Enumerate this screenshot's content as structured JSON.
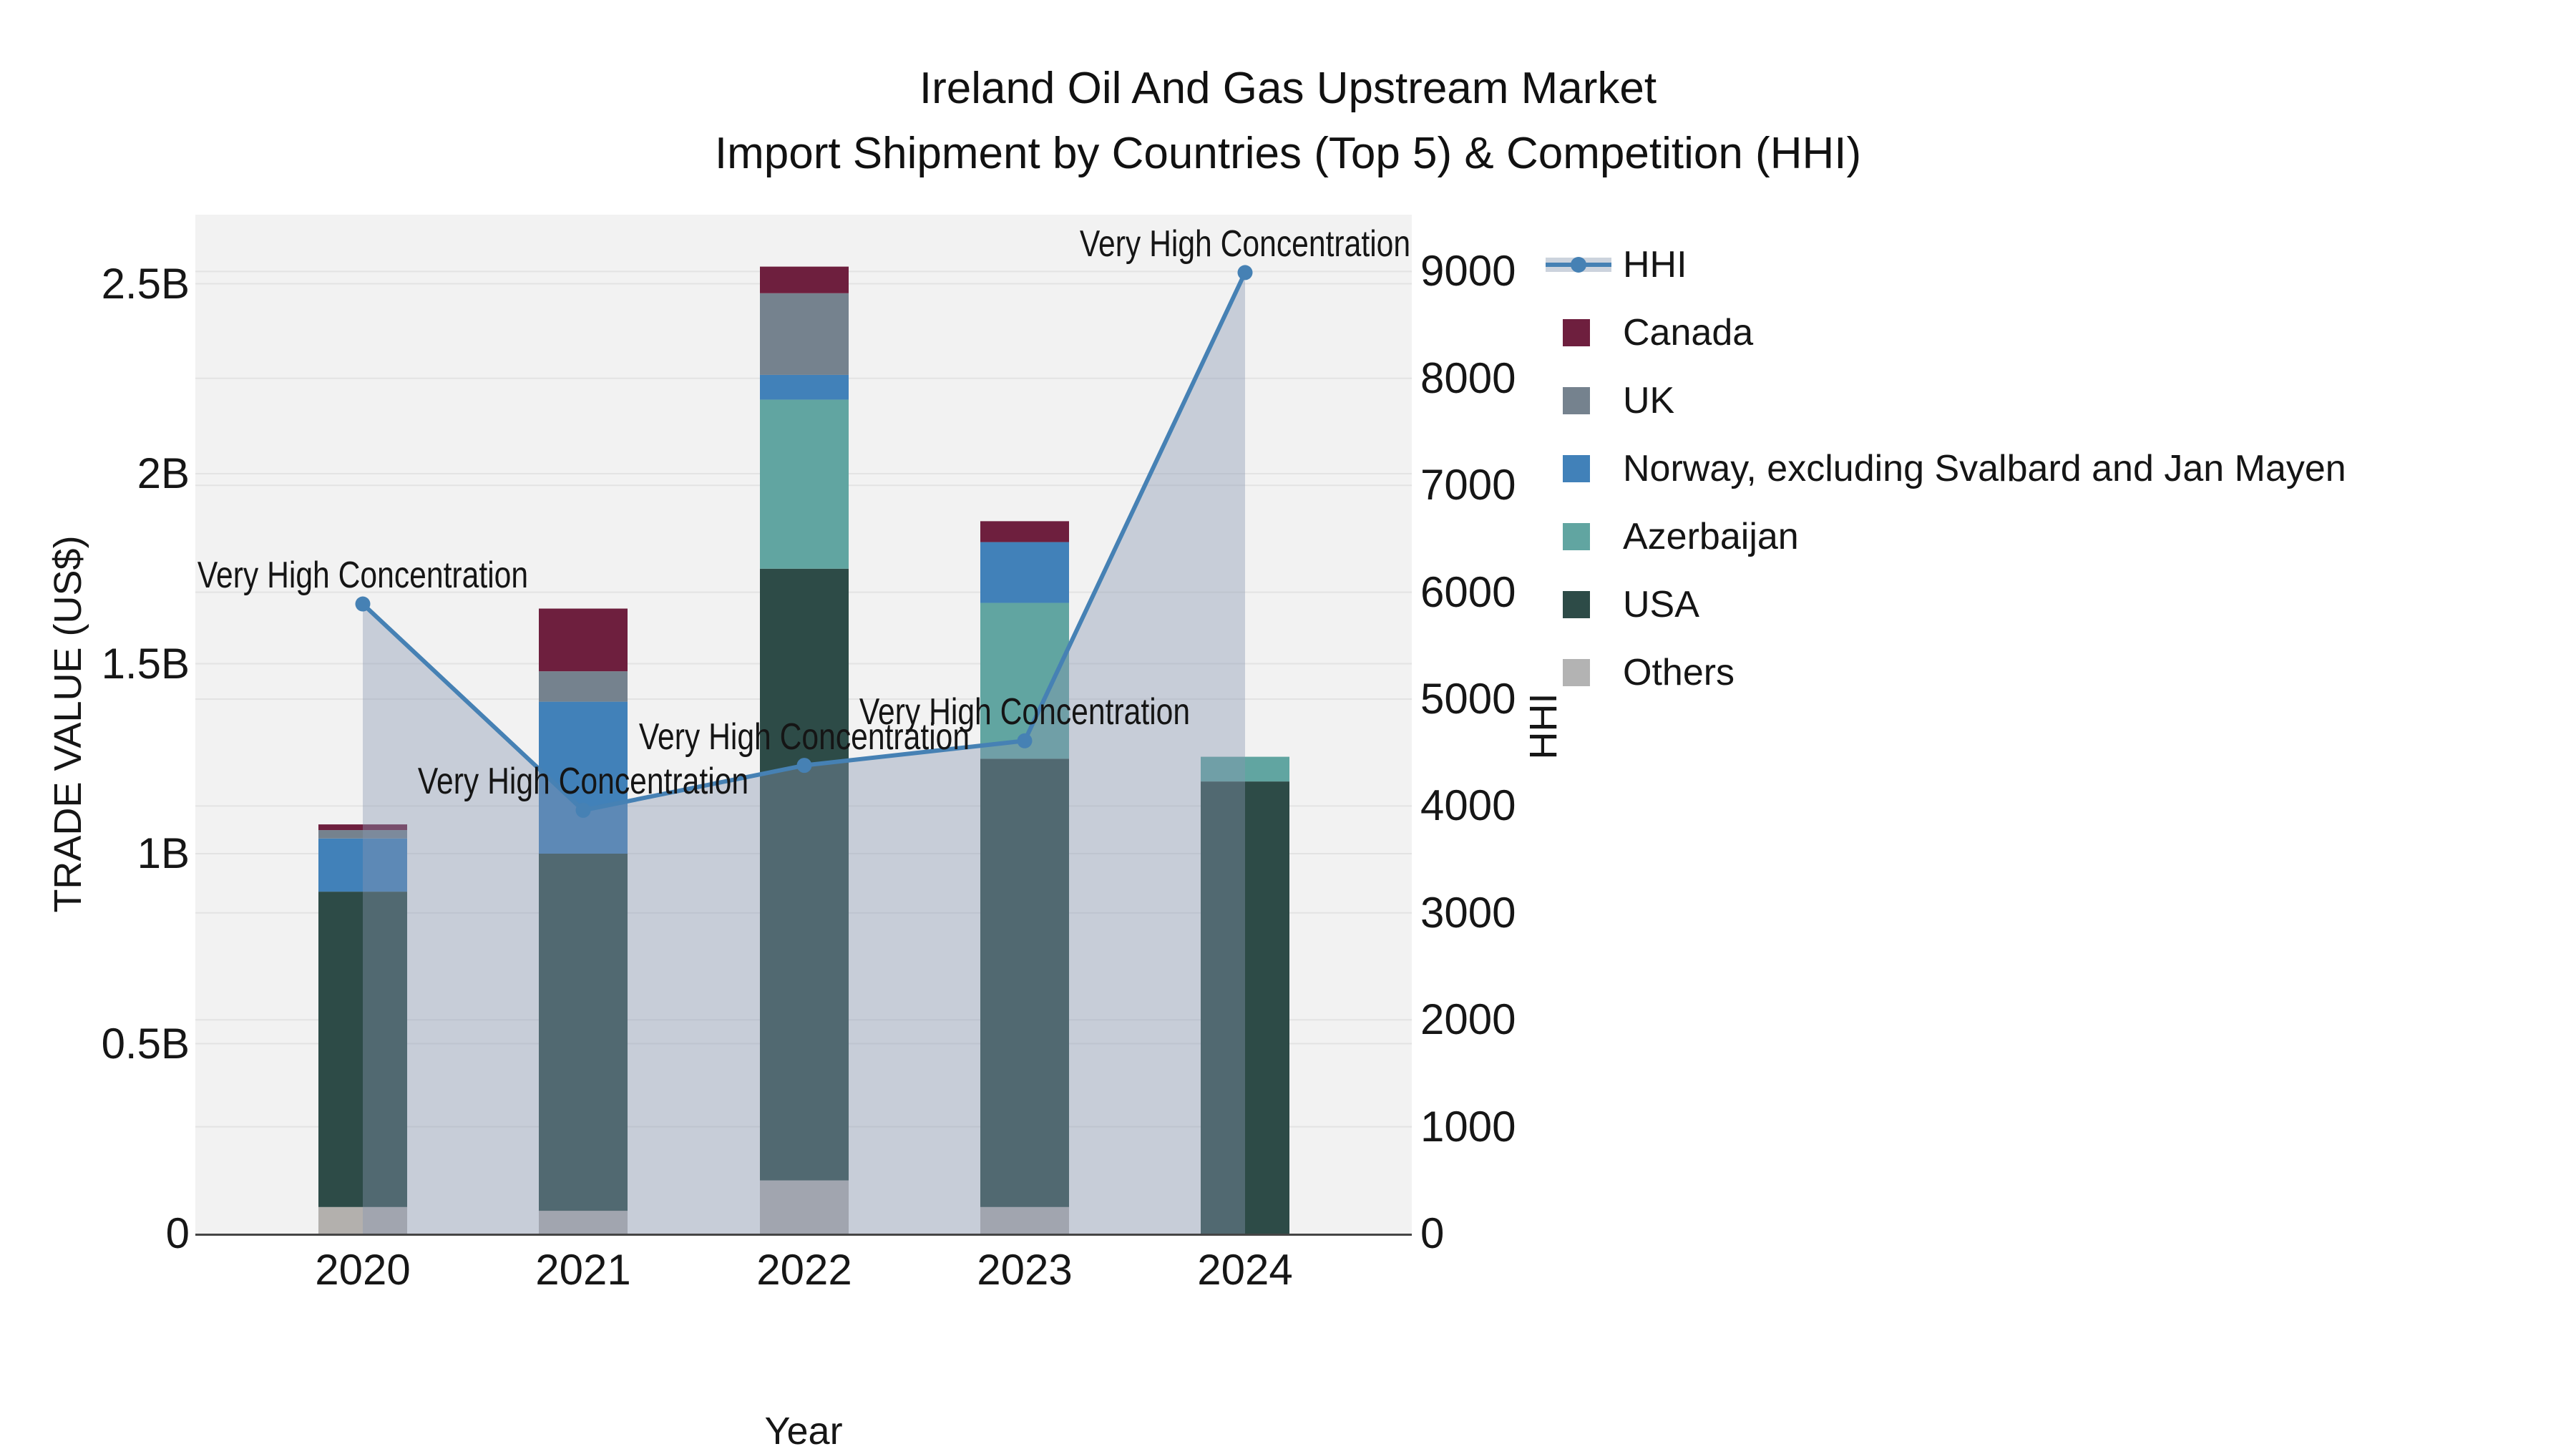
{
  "title": {
    "line1": "Ireland Oil And Gas Upstream Market",
    "line2": "Import Shipment by Countries (Top 5) & Competition (HHI)"
  },
  "chart_data": {
    "type": "combo: stacked-bar + area-line (dual y-axis)",
    "x_categories": [
      "2020",
      "2021",
      "2022",
      "2023",
      "2024"
    ],
    "x_axis": {
      "title": "Year"
    },
    "y_left": {
      "title": "TRADE VALUE (US$)",
      "tick_labels": [
        "0",
        "0.5B",
        "1B",
        "1.5B",
        "2B",
        "2.5B"
      ],
      "tick_values_billions": [
        0,
        0.5,
        1,
        1.5,
        2,
        2.5
      ],
      "range_billions": [
        0,
        2.68
      ],
      "grid": "on"
    },
    "y_right": {
      "title": "HHI",
      "tick_labels": [
        "0",
        "1000",
        "2000",
        "3000",
        "4000",
        "5000",
        "6000",
        "7000",
        "8000",
        "9000"
      ],
      "tick_values": [
        0,
        1000,
        2000,
        3000,
        4000,
        5000,
        6000,
        7000,
        8000,
        9000
      ],
      "range": [
        0,
        9000
      ],
      "grid": "on"
    },
    "bar_series_bottom_to_top": [
      {
        "name": "Others",
        "color": "#b3b0ad",
        "values_billions": [
          0.07,
          0.06,
          0.14,
          0.07,
          0
        ]
      },
      {
        "name": "USA",
        "color": "#2d4b47",
        "values_billions": [
          0.83,
          0.94,
          1.61,
          1.18,
          1.19
        ]
      },
      {
        "name": "Azerbaijan",
        "color": "#61a5a1",
        "values_billions": [
          0,
          0,
          0.445,
          0.41,
          0.065
        ]
      },
      {
        "name": "Norway, excluding Svalbard and Jan Mayen",
        "color": "#4181b9",
        "values_billions": [
          0.14,
          0.4,
          0.065,
          0.16,
          0
        ]
      },
      {
        "name": "UK",
        "color": "#75828e",
        "values_billions": [
          0.022,
          0.08,
          0.215,
          0,
          0
        ]
      },
      {
        "name": "Canada",
        "color": "#6e1f3e",
        "values_billions": [
          0.015,
          0.165,
          0.07,
          0.055,
          0
        ]
      }
    ],
    "line_series": {
      "name": "HHI",
      "color": "#4681b4",
      "area_fill": "rgba(134,150,177,0.40)",
      "marker": "circle",
      "values": [
        5890,
        3960,
        4380,
        4610,
        8990
      ]
    },
    "annotations": [
      {
        "text": "Very High Concentration",
        "x": "2020"
      },
      {
        "text": "Very High Concentration",
        "x": "2021"
      },
      {
        "text": "Very High Concentration",
        "x": "2022"
      },
      {
        "text": "Very High Concentration",
        "x": "2023"
      },
      {
        "text": "Very High Concentration",
        "x": "2024"
      }
    ],
    "plot_background": "#f2f2f2",
    "gridline_color": "#e3e3e3",
    "axis_line_color": "#454545"
  },
  "legend": {
    "items": [
      {
        "label": "HHI",
        "type": "line",
        "color": "#4681b4",
        "band_color": "#ccd3dd"
      },
      {
        "label": "Canada",
        "type": "swatch",
        "color": "#6e1f3e"
      },
      {
        "label": "UK",
        "type": "swatch",
        "color": "#75828e"
      },
      {
        "label": "Norway, excluding Svalbard and Jan Mayen",
        "type": "swatch",
        "color": "#4181b9"
      },
      {
        "label": "Azerbaijan",
        "type": "swatch",
        "color": "#61a5a1"
      },
      {
        "label": "USA",
        "type": "swatch",
        "color": "#2d4b47"
      },
      {
        "label": "Others",
        "type": "swatch",
        "color": "#b3b3b3"
      }
    ]
  }
}
